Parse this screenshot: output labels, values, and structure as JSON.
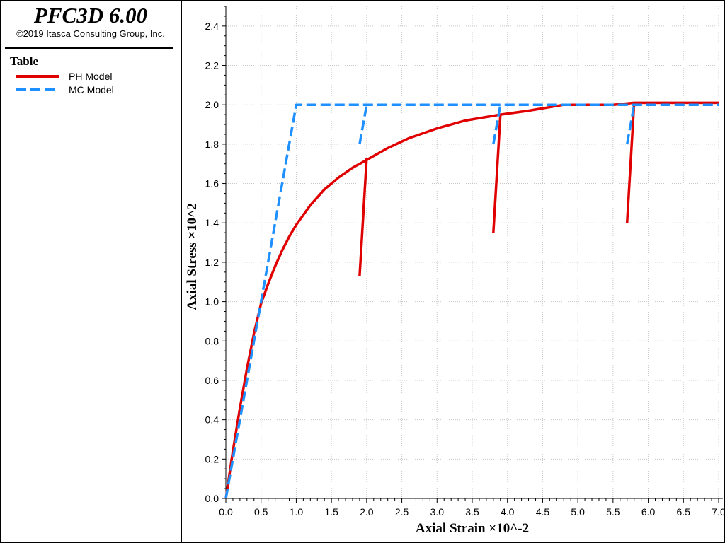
{
  "app": {
    "title": "PFC3D 6.00",
    "copyright": "©2019 Itasca Consulting Group, Inc."
  },
  "legend": {
    "title": "Table",
    "items": [
      {
        "label": "PH Model",
        "color": "#e00000",
        "style": "solid"
      },
      {
        "label": "MC Model",
        "color": "#1e90ff",
        "style": "dashed"
      }
    ]
  },
  "chart_data": {
    "type": "line",
    "xlabel": "Axial Strain ×10^-2",
    "ylabel": "Axial Stress ×10^2",
    "xlim": [
      0,
      7.0
    ],
    "ylim": [
      0,
      2.5
    ],
    "xticks": [
      0.0,
      0.5,
      1.0,
      1.5,
      2.0,
      2.5,
      3.0,
      3.5,
      4.0,
      4.5,
      5.0,
      5.5,
      6.0,
      6.5,
      7.0
    ],
    "yticks": [
      0.0,
      0.2,
      0.4,
      0.6,
      0.8,
      1.0,
      1.2,
      1.4,
      1.6,
      1.8,
      2.0,
      2.2,
      2.4
    ],
    "grid": true,
    "legend_position": "side-panel",
    "series": [
      {
        "name": "PH Model",
        "color": "#e00000",
        "style": "solid",
        "segments": [
          [
            [
              0.0,
              0.0
            ],
            [
              0.1,
              0.24
            ],
            [
              0.2,
              0.46
            ],
            [
              0.3,
              0.66
            ],
            [
              0.4,
              0.84
            ],
            [
              0.5,
              0.99
            ],
            [
              0.6,
              1.09
            ],
            [
              0.7,
              1.18
            ],
            [
              0.8,
              1.26
            ],
            [
              0.9,
              1.33
            ],
            [
              1.0,
              1.39
            ],
            [
              1.2,
              1.49
            ],
            [
              1.4,
              1.57
            ],
            [
              1.6,
              1.63
            ],
            [
              1.8,
              1.68
            ],
            [
              2.0,
              1.72
            ],
            [
              2.3,
              1.78
            ],
            [
              2.6,
              1.83
            ],
            [
              3.0,
              1.88
            ],
            [
              3.4,
              1.92
            ],
            [
              3.9,
              1.95
            ],
            [
              4.3,
              1.97
            ],
            [
              4.8,
              2.0
            ],
            [
              5.0,
              2.0
            ],
            [
              5.5,
              2.0
            ],
            [
              5.8,
              2.01
            ],
            [
              6.3,
              2.01
            ],
            [
              7.0,
              2.01
            ]
          ],
          [
            [
              1.9,
              1.13
            ],
            [
              2.0,
              1.73
            ]
          ],
          [
            [
              3.8,
              1.35
            ],
            [
              3.9,
              1.95
            ]
          ],
          [
            [
              5.7,
              1.4
            ],
            [
              5.8,
              2.01
            ]
          ]
        ]
      },
      {
        "name": "MC Model",
        "color": "#1e90ff",
        "style": "dashed",
        "segments": [
          [
            [
              0.0,
              0.0
            ],
            [
              1.0,
              2.0
            ],
            [
              7.0,
              2.0
            ]
          ],
          [
            [
              1.9,
              1.8
            ],
            [
              2.0,
              2.0
            ]
          ],
          [
            [
              3.8,
              1.8
            ],
            [
              3.9,
              2.0
            ]
          ],
          [
            [
              5.7,
              1.8
            ],
            [
              5.8,
              2.0
            ]
          ]
        ]
      }
    ]
  }
}
